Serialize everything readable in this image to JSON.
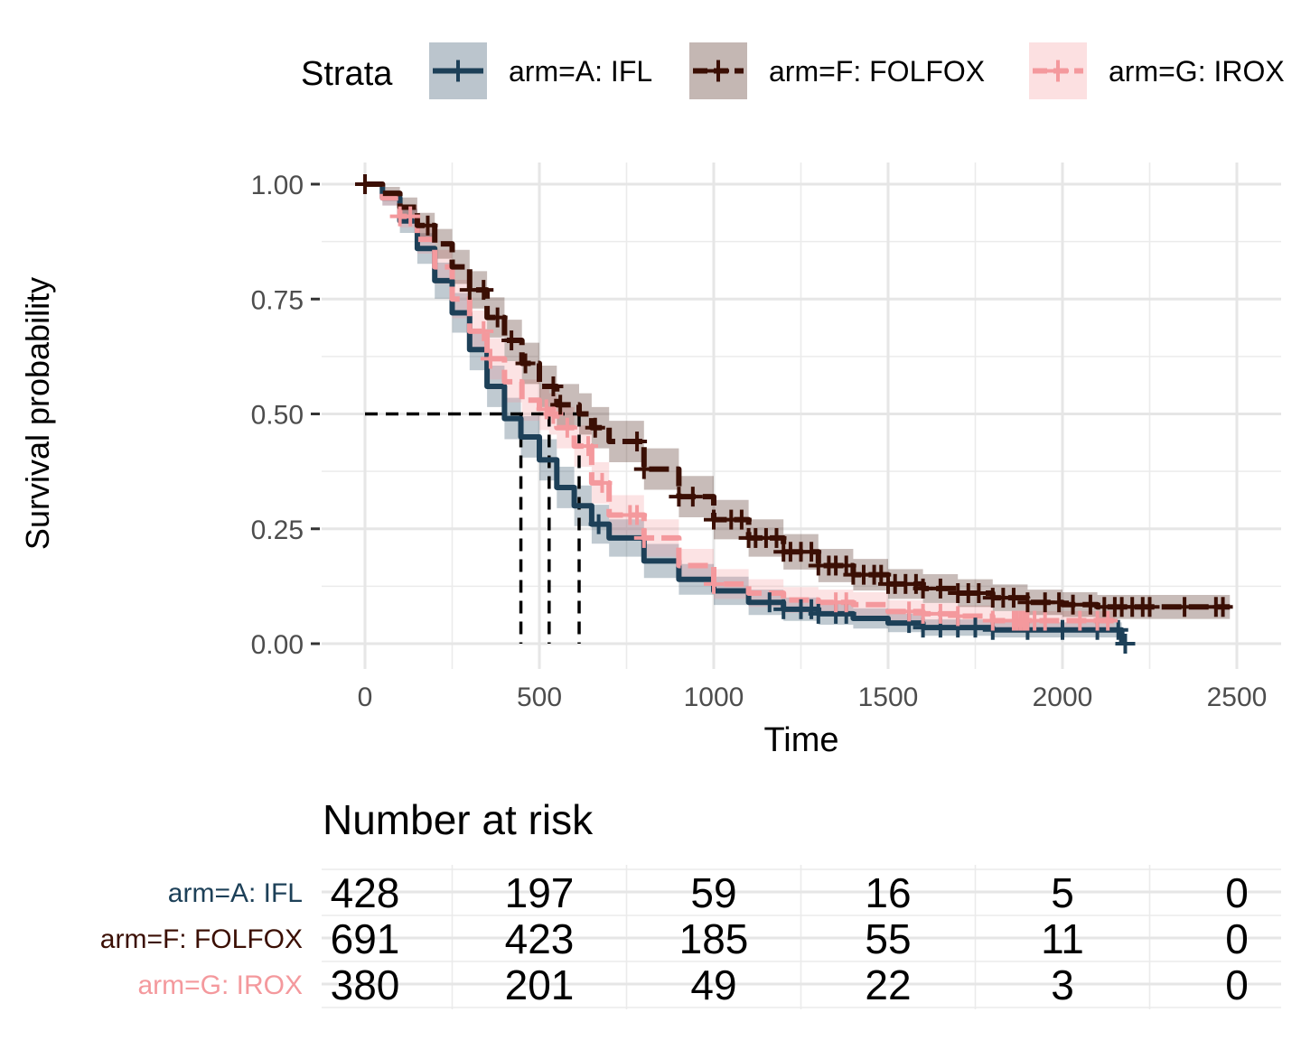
{
  "chart_data": {
    "type": "line",
    "subtype": "kaplan-meier",
    "title": "",
    "xlabel": "Time",
    "ylabel": "Survival probability",
    "xlim": [
      -120,
      2620
    ],
    "ylim": [
      -0.03,
      1.05
    ],
    "x_ticks": [
      0,
      500,
      1000,
      1500,
      2000,
      2500
    ],
    "x_tick_labels": [
      "0",
      "500",
      "1000",
      "1500",
      "2000",
      "2500"
    ],
    "y_ticks": [
      0,
      0.25,
      0.5,
      0.75,
      1
    ],
    "y_tick_labels": [
      "0.00",
      "0.25",
      "0.50",
      "0.75",
      "1.00"
    ],
    "grid": true,
    "confidence_bands": true,
    "censor_marks": true,
    "legend": {
      "title": "Strata",
      "position": "top",
      "labels": [
        "arm=A: IFL",
        "arm=F: FOLFOX",
        "arm=G: IROX"
      ]
    },
    "median_survival": [
      {
        "series": "arm=A: IFL",
        "x": 447
      },
      {
        "series": "arm=G: IROX",
        "x": 528
      },
      {
        "series": "arm=F: FOLFOX",
        "x": 614
      }
    ],
    "series": [
      {
        "name": "arm=A: IFL",
        "color": "#1d4058",
        "line_style": "solid",
        "x": [
          0,
          50,
          100,
          150,
          200,
          250,
          300,
          350,
          400,
          447,
          500,
          550,
          600,
          650,
          700,
          800,
          900,
          1000,
          1100,
          1200,
          1300,
          1400,
          1500,
          1600,
          1800,
          2000,
          2100,
          2170
        ],
        "y": [
          1.0,
          0.97,
          0.92,
          0.86,
          0.79,
          0.72,
          0.64,
          0.56,
          0.49,
          0.45,
          0.4,
          0.34,
          0.3,
          0.26,
          0.23,
          0.18,
          0.14,
          0.115,
          0.09,
          0.075,
          0.065,
          0.055,
          0.045,
          0.035,
          0.03,
          0.03,
          0.03,
          0.0
        ],
        "censor_x": [
          670,
          1160,
          1200,
          1250,
          1280,
          1300,
          1350,
          1380,
          1560,
          1600,
          1650,
          1700,
          1750,
          1800,
          1900,
          2000,
          2100,
          2160,
          2180
        ]
      },
      {
        "name": "arm=F: FOLFOX",
        "color": "#3b0f04",
        "line_style": "dashed",
        "x": [
          0,
          50,
          100,
          150,
          200,
          250,
          300,
          350,
          400,
          450,
          500,
          550,
          614,
          650,
          700,
          800,
          900,
          1000,
          1100,
          1200,
          1300,
          1400,
          1500,
          1600,
          1700,
          1800,
          1900,
          2000,
          2100,
          2200,
          2300,
          2400,
          2480
        ],
        "y": [
          1.0,
          0.98,
          0.95,
          0.91,
          0.87,
          0.82,
          0.77,
          0.71,
          0.66,
          0.61,
          0.56,
          0.52,
          0.5,
          0.47,
          0.44,
          0.38,
          0.32,
          0.27,
          0.23,
          0.2,
          0.17,
          0.15,
          0.13,
          0.12,
          0.11,
          0.1,
          0.09,
          0.085,
          0.08,
          0.08,
          0.08,
          0.08,
          0.08
        ],
        "censor_x": [
          0,
          180,
          300,
          340,
          380,
          420,
          460,
          540,
          560,
          660,
          780,
          800,
          900,
          940,
          1000,
          1050,
          1080,
          1100,
          1120,
          1150,
          1180,
          1200,
          1220,
          1250,
          1280,
          1300,
          1330,
          1350,
          1380,
          1400,
          1430,
          1460,
          1480,
          1500,
          1520,
          1550,
          1580,
          1600,
          1650,
          1700,
          1730,
          1760,
          1800,
          1830,
          1860,
          1900,
          1950,
          1990,
          2030,
          2080,
          2120,
          2150,
          2170,
          2200,
          2230,
          2250,
          2350,
          2440,
          2460
        ]
      },
      {
        "name": "arm=G: IROX",
        "color": "#f4999d",
        "line_style": "dashed",
        "x": [
          0,
          50,
          100,
          150,
          200,
          250,
          300,
          350,
          400,
          450,
          500,
          528,
          550,
          600,
          650,
          700,
          800,
          900,
          1000,
          1100,
          1200,
          1300,
          1400,
          1500,
          1600,
          1700,
          1800,
          1900,
          2000,
          2100,
          2150
        ],
        "y": [
          1.0,
          0.97,
          0.93,
          0.88,
          0.82,
          0.75,
          0.68,
          0.62,
          0.57,
          0.53,
          0.51,
          0.5,
          0.47,
          0.43,
          0.35,
          0.28,
          0.23,
          0.17,
          0.13,
          0.11,
          0.095,
          0.09,
          0.085,
          0.07,
          0.065,
          0.06,
          0.05,
          0.05,
          0.05,
          0.05,
          0.05
        ],
        "censor_x": [
          100,
          130,
          340,
          360,
          520,
          540,
          580,
          640,
          680,
          760,
          780,
          800,
          1000,
          1350,
          1380,
          1560,
          1600,
          1650,
          1700,
          1800,
          1860,
          1870,
          1880,
          1890,
          1900,
          1920,
          1950,
          2050,
          2100,
          2130
        ]
      }
    ]
  },
  "risk_table": {
    "title": "Number at risk",
    "times": [
      0,
      500,
      1000,
      1500,
      2000,
      2500
    ],
    "rows": [
      {
        "label": "arm=A: IFL",
        "color": "#1d4058",
        "values": [
          "428",
          "197",
          "59",
          "16",
          "5",
          "0"
        ]
      },
      {
        "label": "arm=F: FOLFOX",
        "color": "#3b0f04",
        "values": [
          "691",
          "423",
          "185",
          "55",
          "11",
          "0"
        ]
      },
      {
        "label": "arm=G: IROX",
        "color": "#f4999d",
        "values": [
          "380",
          "201",
          "49",
          "22",
          "3",
          "0"
        ]
      }
    ]
  }
}
